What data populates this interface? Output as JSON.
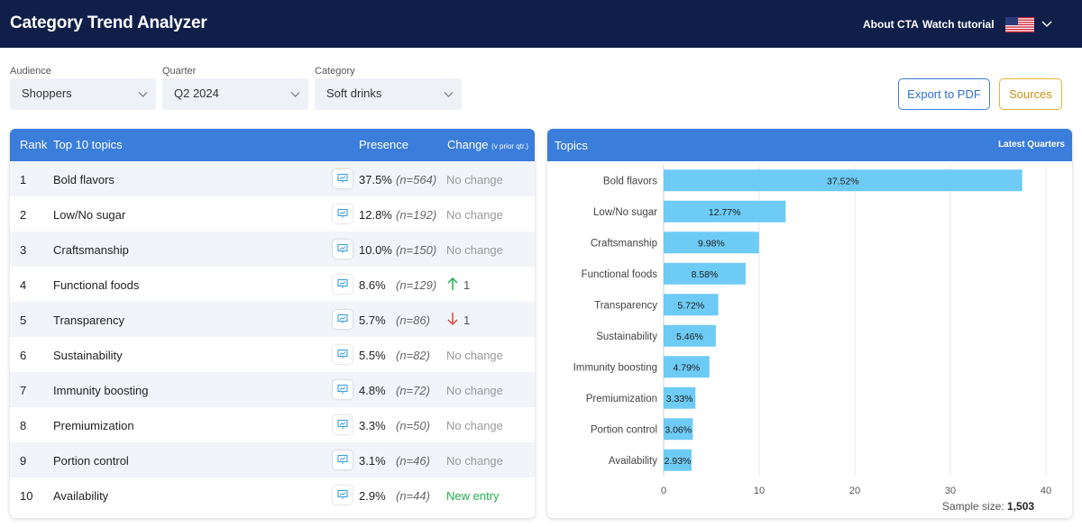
{
  "app": {
    "title": "Category Trend Analyzer"
  },
  "nav": {
    "about": "About CTA",
    "tutorial": "Watch tutorial",
    "flag_icon": "us-flag-icon"
  },
  "filters": [
    {
      "label": "Audience",
      "value": "Shoppers"
    },
    {
      "label": "Quarter",
      "value": "Q2 2024"
    },
    {
      "label": "Category",
      "value": "Soft drinks"
    }
  ],
  "buttons": {
    "export": "Export to PDF",
    "sources": "Sources"
  },
  "table": {
    "headers": {
      "rank": "Rank",
      "topic": "Top 10 topics",
      "presence": "Presence",
      "change": "Change",
      "change_note": "(v prior qtr.)"
    },
    "rows": [
      {
        "rank": "1",
        "topic": "Bold flavors",
        "pct": "37.5%",
        "n": "(n=564)",
        "change": "No change",
        "type": "none"
      },
      {
        "rank": "2",
        "topic": "Low/No sugar",
        "pct": "12.8%",
        "n": "(n=192)",
        "change": "No change",
        "type": "none"
      },
      {
        "rank": "3",
        "topic": "Craftsmanship",
        "pct": "10.0%",
        "n": "(n=150)",
        "change": "No change",
        "type": "none"
      },
      {
        "rank": "4",
        "topic": "Functional foods",
        "pct": "8.6%",
        "n": "(n=129)",
        "change": "1",
        "type": "up"
      },
      {
        "rank": "5",
        "topic": "Transparency",
        "pct": "5.7%",
        "n": "(n=86)",
        "change": "1",
        "type": "down"
      },
      {
        "rank": "6",
        "topic": "Sustainability",
        "pct": "5.5%",
        "n": "(n=82)",
        "change": "No change",
        "type": "none"
      },
      {
        "rank": "7",
        "topic": "Immunity boosting",
        "pct": "4.8%",
        "n": "(n=72)",
        "change": "No change",
        "type": "none"
      },
      {
        "rank": "8",
        "topic": "Premiumization",
        "pct": "3.3%",
        "n": "(n=50)",
        "change": "No change",
        "type": "none"
      },
      {
        "rank": "9",
        "topic": "Portion control",
        "pct": "3.1%",
        "n": "(n=46)",
        "change": "No change",
        "type": "none"
      },
      {
        "rank": "10",
        "topic": "Availability",
        "pct": "2.9%",
        "n": "(n=44)",
        "change": "New entry",
        "type": "new"
      }
    ]
  },
  "chart_panel": {
    "title": "Topics",
    "right_label": "Latest Quarters",
    "sample_label": "Sample size:",
    "sample_value": "1,503"
  },
  "chart_data": {
    "type": "bar",
    "orientation": "horizontal",
    "categories": [
      "Bold flavors",
      "Low/No sugar",
      "Craftsmanship",
      "Functional foods",
      "Transparency",
      "Sustainability",
      "Immunity boosting",
      "Premiumization",
      "Portion control",
      "Availability"
    ],
    "values": [
      37.52,
      12.77,
      9.98,
      8.58,
      5.72,
      5.46,
      4.79,
      3.33,
      3.06,
      2.93
    ],
    "value_labels": [
      "37.52%",
      "12.77%",
      "9.98%",
      "8.58%",
      "5.72%",
      "5.46%",
      "4.79%",
      "3.33%",
      "3.06%",
      "2.93%"
    ],
    "xlim": [
      0,
      40
    ],
    "xticks": [
      0,
      10,
      20,
      30,
      40
    ],
    "grid": true,
    "bar_color": "#6ecbf5"
  },
  "colors": {
    "header": "#0f1f4a",
    "accent": "#3b7ddb",
    "up": "#21b04b",
    "down": "#e0463c"
  }
}
